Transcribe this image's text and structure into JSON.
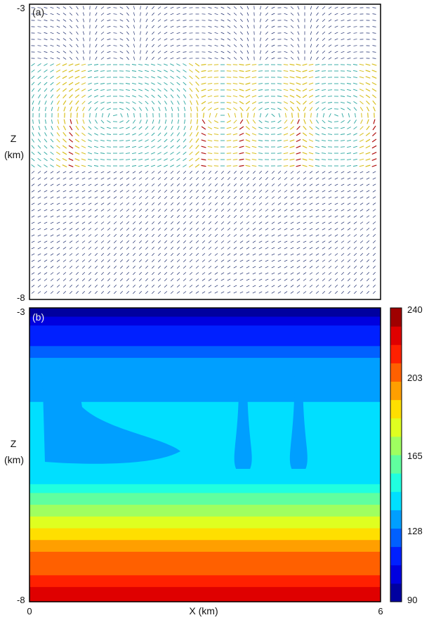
{
  "chart_data": [
    {
      "type": "vector_field",
      "panel_label": "(a)",
      "ylabel": "Z\n(km)",
      "ylabel_line1": "Z",
      "ylabel_line2": "(km)",
      "y_ticks": [
        "-3",
        "-8"
      ],
      "ylim": [
        -8,
        -3
      ],
      "xlim": [
        0,
        6
      ],
      "layer_z_top": -4.0,
      "layer_z_bottom": -5.8,
      "plume_x": [
        0.7,
        2.95,
        3.65,
        4.6,
        5.85
      ],
      "colors": {
        "weak": "#1a2a6c",
        "mid": "#2aa6a0",
        "strong": "#d8c020",
        "max": "#b01010"
      }
    },
    {
      "type": "heatmap",
      "panel_label": "(b)",
      "ylabel_line1": "Z",
      "ylabel_line2": "(km)",
      "xlabel": "X (km)",
      "x_ticks": [
        "0",
        "6"
      ],
      "y_ticks": [
        "-3",
        "-8"
      ],
      "xlim": [
        0,
        6
      ],
      "ylim": [
        -8,
        -3
      ],
      "colorbar": {
        "min": 90,
        "max": 240,
        "ticks": [
          "240",
          "203",
          "165",
          "128",
          "90"
        ]
      },
      "vertical_profile": {
        "z_km": [
          -3.0,
          -3.15,
          -3.3,
          -3.5,
          -3.65,
          -3.85,
          -4.6,
          -5.75,
          -6.0,
          -6.15,
          -6.35,
          -6.55,
          -6.75,
          -6.95,
          -7.15,
          -7.35,
          -7.55,
          -7.75,
          -8.0
        ],
        "value": [
          95,
          105,
          112,
          118,
          124,
          130,
          137,
          137,
          148,
          158,
          168,
          178,
          188,
          196,
          203,
          210,
          218,
          226,
          234
        ]
      }
    }
  ]
}
